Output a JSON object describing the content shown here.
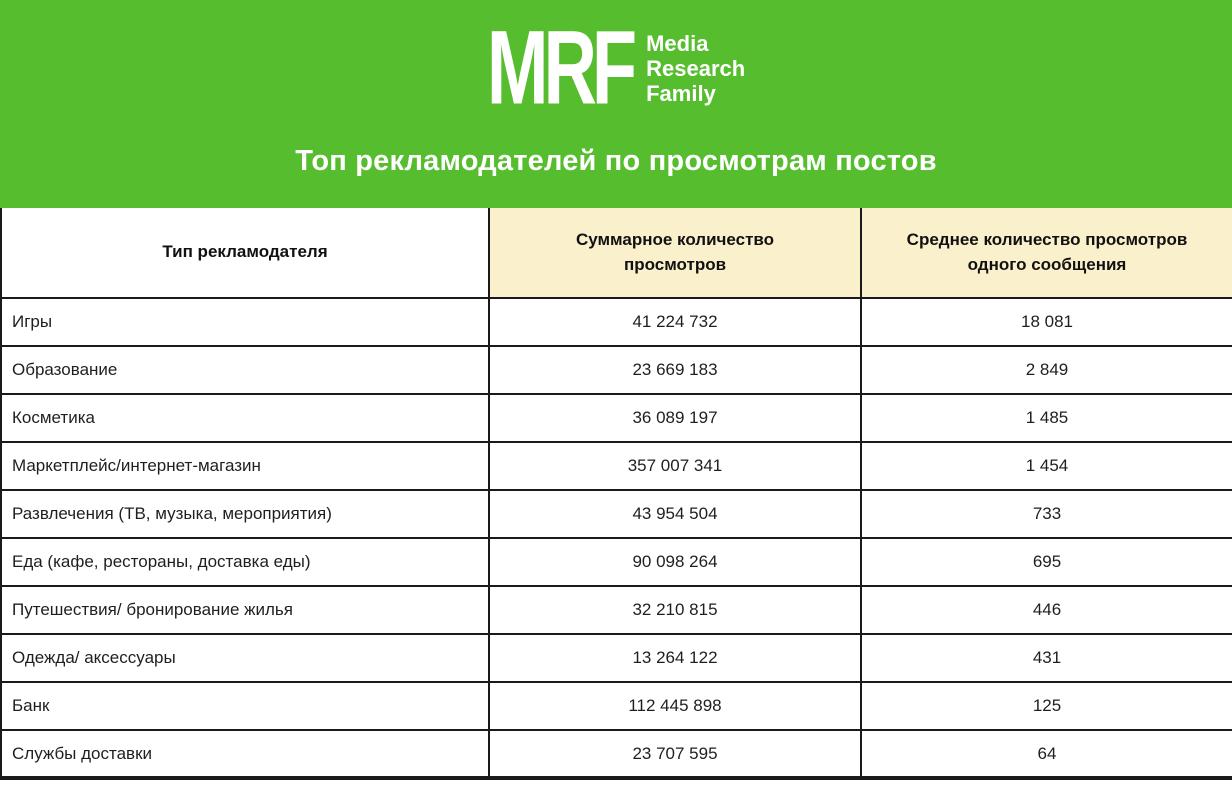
{
  "brand": {
    "logo_text": "MRF",
    "name_lines": [
      "Media",
      "Research",
      "Family"
    ],
    "banner_color": "#56BE2E"
  },
  "title": "Топ рекламодателей по просмотрам постов",
  "table": {
    "columns": [
      "Тип рекламодателя",
      "Суммарное количество\nпросмотров",
      "Среднее количество просмотров\nодного сообщения"
    ],
    "rows": [
      {
        "type": "Игры",
        "total": "41 224 732",
        "avg": "18 081"
      },
      {
        "type": "Образование",
        "total": "23 669 183",
        "avg": "2 849"
      },
      {
        "type": "Косметика",
        "total": "36 089 197",
        "avg": "1 485"
      },
      {
        "type": "Маркетплейс/интернет-магазин",
        "total": "357 007 341",
        "avg": "1 454"
      },
      {
        "type": "Развлечения (ТВ, музыка, мероприятия)",
        "total": "43 954 504",
        "avg": "733"
      },
      {
        "type": "Еда (кафе, рестораны, доставка еды)",
        "total": "90 098 264",
        "avg": "695"
      },
      {
        "type": "Путешествия/ бронирование жилья",
        "total": "32 210 815",
        "avg": "446"
      },
      {
        "type": "Одежда/ аксессуары",
        "total": "13 264 122",
        "avg": "431"
      },
      {
        "type": "Банк",
        "total": "112 445 898",
        "avg": "125"
      },
      {
        "type": "Службы доставки",
        "total": "23 707 595",
        "avg": "64"
      }
    ]
  },
  "colors": {
    "banner_green": "#56BE2E",
    "header_cell_cream": "#FAF0CB",
    "header_cell_white": "#FFFFFF",
    "border": "#1A1A1A",
    "text": "#1F1F1F",
    "title_text": "#FFFFFF"
  },
  "chart_data": {
    "type": "table",
    "title": "Топ рекламодателей по просмотрам постов",
    "columns": [
      "Тип рекламодателя",
      "Суммарное количество просмотров",
      "Среднее количество просмотров одного сообщения"
    ],
    "rows": [
      [
        "Игры",
        41224732,
        18081
      ],
      [
        "Образование",
        23669183,
        2849
      ],
      [
        "Косметика",
        36089197,
        1485
      ],
      [
        "Маркетплейс/интернет-магазин",
        357007341,
        1454
      ],
      [
        "Развлечения (ТВ, музыка, мероприятия)",
        43954504,
        733
      ],
      [
        "Еда (кафе, рестораны, доставка еды)",
        90098264,
        695
      ],
      [
        "Путешествия/ бронирование жилья",
        32210815,
        446
      ],
      [
        "Одежда/ аксессуары",
        13264122,
        431
      ],
      [
        "Банк",
        112445898,
        125
      ],
      [
        "Службы доставки",
        23707595,
        64
      ]
    ]
  }
}
